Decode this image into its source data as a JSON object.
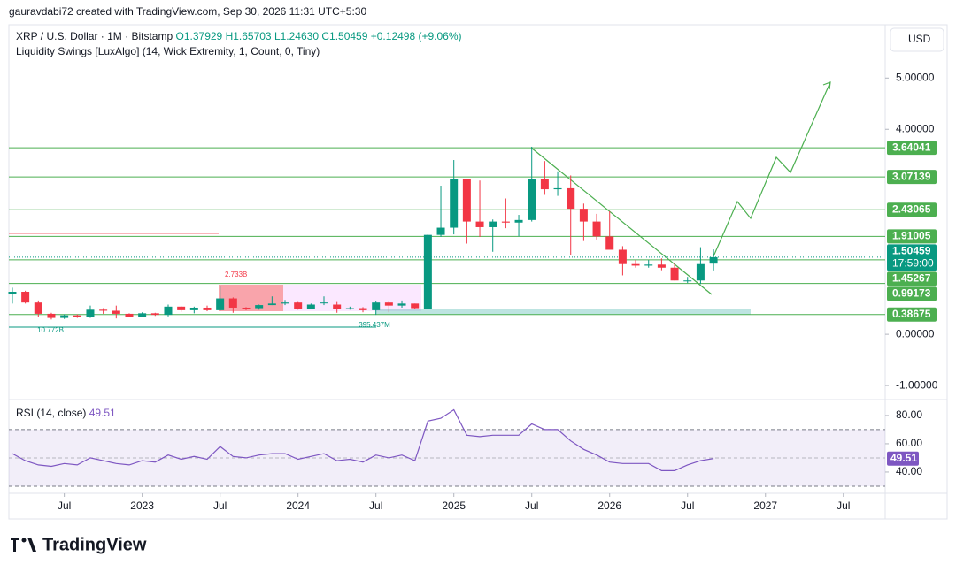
{
  "header": {
    "attribution": "gauravdabi72 created with TradingView.com, Sep 30, 2026 11:31 UTC+5:30",
    "currency": "USD",
    "logo": "TradingView"
  },
  "chart_data": [
    {
      "type": "candlestick",
      "title": "XRP / U.S. Dollar · 1M · Bitstamp",
      "ohlc_legend": [
        "O1.37929",
        "H1.65703",
        "L1.24630",
        "C1.50459"
      ],
      "change": "+0.12498 (+9.06%)",
      "indicator": "Liquidity Swings [LuxAlgo] (14, Wick Extremity, 1, Count, 0, Tiny)",
      "open": [
        0.79,
        0.83,
        0.62,
        0.4,
        0.32,
        0.37,
        0.33,
        0.48,
        0.46,
        0.4,
        0.34,
        0.41,
        0.38,
        0.54,
        0.47,
        0.52,
        0.47,
        0.7,
        0.52,
        0.51,
        0.57,
        0.6,
        0.62,
        0.5,
        0.62,
        0.58,
        0.5,
        0.51,
        0.47,
        0.62,
        0.56,
        0.6,
        0.5,
        1.94,
        2.08,
        3.03,
        2.2,
        2.09,
        2.2,
        2.18,
        2.23,
        3.03,
        2.83,
        2.85,
        2.45,
        2.2,
        1.91,
        1.65,
        1.37,
        1.34,
        1.36,
        1.3,
        1.05,
        1.05,
        1.37929
      ],
      "high": [
        0.91,
        0.85,
        0.66,
        0.42,
        0.39,
        0.39,
        0.56,
        0.51,
        0.56,
        0.41,
        0.43,
        0.42,
        0.58,
        0.55,
        0.54,
        0.56,
        0.94,
        0.72,
        0.53,
        0.58,
        0.74,
        0.67,
        0.63,
        0.6,
        0.74,
        0.63,
        0.54,
        0.53,
        0.64,
        0.64,
        0.66,
        0.6,
        1.95,
        2.9,
        3.4,
        3.0,
        3.0,
        2.24,
        2.65,
        2.33,
        3.66,
        3.38,
        3.18,
        3.1,
        2.55,
        2.35,
        2.4,
        1.72,
        1.45,
        1.45,
        1.48,
        1.38,
        1.12,
        1.7,
        1.65703
      ],
      "low": [
        0.6,
        0.6,
        0.33,
        0.29,
        0.3,
        0.32,
        0.32,
        0.4,
        0.31,
        0.33,
        0.33,
        0.36,
        0.35,
        0.44,
        0.41,
        0.45,
        0.46,
        0.42,
        0.47,
        0.48,
        0.57,
        0.57,
        0.48,
        0.49,
        0.57,
        0.42,
        0.48,
        0.43,
        0.38,
        0.43,
        0.52,
        0.49,
        0.49,
        1.9,
        1.95,
        1.77,
        1.9,
        1.61,
        2.07,
        1.91,
        2.2,
        2.72,
        2.7,
        1.55,
        1.82,
        1.85,
        1.72,
        1.15,
        1.3,
        1.3,
        1.25,
        1.05,
        1.0,
        0.98,
        1.2463
      ],
      "close": [
        0.83,
        0.62,
        0.4,
        0.32,
        0.37,
        0.33,
        0.48,
        0.46,
        0.4,
        0.34,
        0.41,
        0.38,
        0.54,
        0.47,
        0.52,
        0.47,
        0.7,
        0.52,
        0.51,
        0.57,
        0.6,
        0.62,
        0.5,
        0.58,
        0.62,
        0.5,
        0.51,
        0.47,
        0.62,
        0.56,
        0.6,
        0.51,
        1.94,
        2.08,
        3.03,
        2.2,
        2.09,
        2.2,
        2.18,
        2.23,
        3.03,
        2.83,
        2.85,
        2.45,
        2.2,
        1.91,
        1.65,
        1.37,
        1.34,
        1.36,
        1.3,
        1.05,
        1.05,
        1.37,
        1.50459
      ],
      "up_color": "#089981",
      "down_color": "#f23645",
      "xlim": [
        -0.27,
        67.22
      ],
      "xticks": [
        {
          "value": 4,
          "label": "Jul"
        },
        {
          "value": 10,
          "label": "2023"
        },
        {
          "value": 16,
          "label": "Jul"
        },
        {
          "value": 22,
          "label": "2024"
        },
        {
          "value": 28,
          "label": "Jul"
        },
        {
          "value": 34,
          "label": "2025"
        },
        {
          "value": 40,
          "label": "Jul"
        },
        {
          "value": 46,
          "label": "2026"
        },
        {
          "value": 52,
          "label": "Jul"
        },
        {
          "value": 58,
          "label": "2027"
        },
        {
          "value": 64,
          "label": "Jul"
        }
      ],
      "ylim": [
        -1.24,
        6.04
      ],
      "yticks": [
        {
          "value": 5,
          "label": "5.00000"
        },
        {
          "value": 4,
          "label": "4.00000"
        },
        {
          "value": 0,
          "label": "0.00000"
        },
        {
          "value": -1,
          "label": "-1.00000"
        }
      ],
      "levels": [
        3.64041,
        3.07139,
        2.43065,
        1.91005,
        1.45267,
        0.99173,
        0.38675
      ],
      "level_color": "#4caf50",
      "countdown": "17:59:00",
      "red_level": 1.97,
      "annotations": [
        "2.733B",
        "10.772B",
        "395.437M"
      ]
    },
    {
      "type": "line",
      "title": "RSI (14, close)",
      "color": "#7e57c2",
      "values": [
        53,
        48,
        45,
        44,
        46,
        45,
        50,
        48,
        46,
        45,
        48,
        47,
        52,
        49,
        51,
        49,
        58,
        51,
        50,
        52,
        53,
        53,
        49,
        51,
        53,
        48,
        49,
        47,
        52,
        50,
        52,
        48,
        76,
        78,
        84,
        66,
        65,
        66,
        66,
        66,
        74,
        70,
        70,
        62,
        56,
        52,
        47,
        46,
        46,
        46,
        41,
        41,
        45,
        48,
        49.51
      ],
      "ylim": [
        25.6,
        91.2
      ],
      "yticks": [
        {
          "value": 80,
          "label": "80.00"
        },
        {
          "value": 60,
          "label": "60.00"
        },
        {
          "value": 40,
          "label": "40.00"
        }
      ],
      "band": [
        30,
        70
      ],
      "midline": 50
    }
  ]
}
